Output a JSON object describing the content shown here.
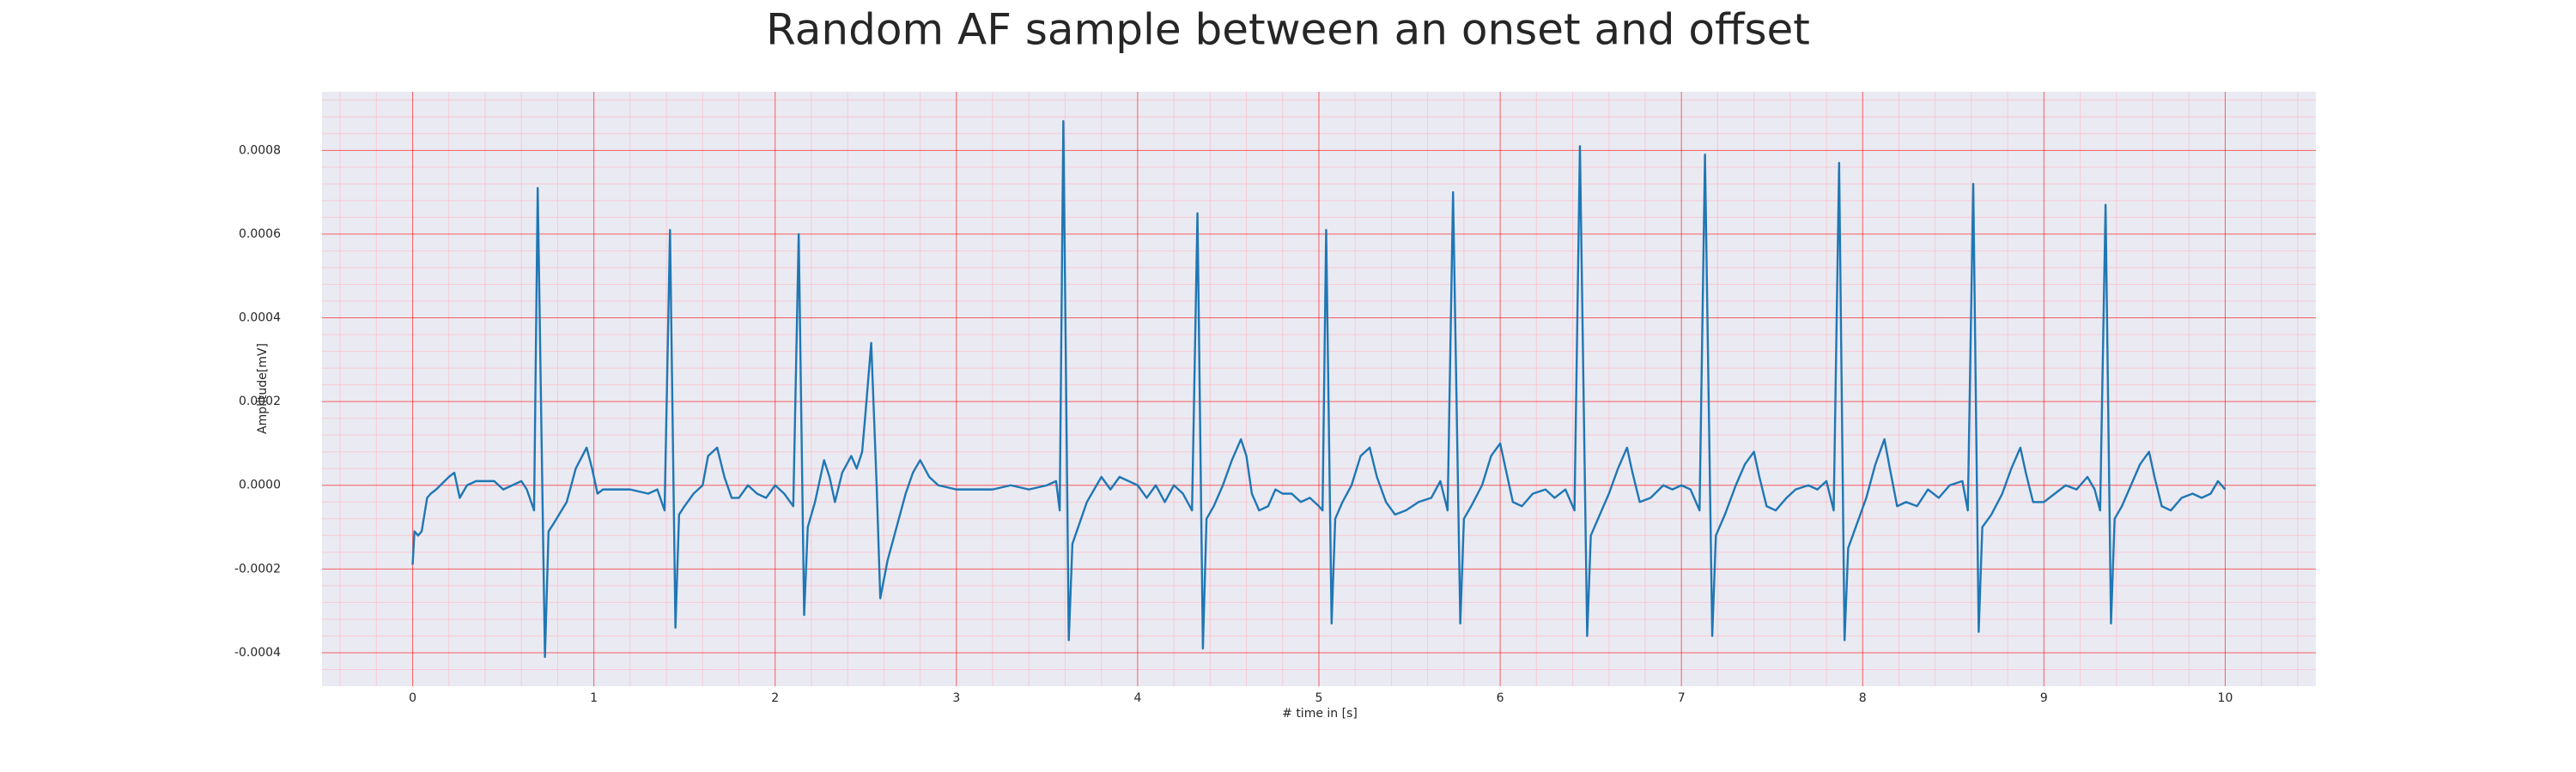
{
  "chart_data": {
    "type": "line",
    "title": "Random AF sample between an onset and offset",
    "x_label": "# time in [s]",
    "y_label": "Amplitude[mV]",
    "xlim": [
      -0.5,
      10.5
    ],
    "ylim": [
      -0.00048,
      0.00094
    ],
    "xticks": [
      0,
      1,
      2,
      3,
      4,
      5,
      6,
      7,
      8,
      9,
      10
    ],
    "yticks": [
      {
        "value": -0.0004,
        "label": "-0.0004"
      },
      {
        "value": -0.0002,
        "label": "-0.0002"
      },
      {
        "value": 0,
        "label": "0.0000"
      },
      {
        "value": 0.0002,
        "label": "0.0002"
      },
      {
        "value": 0.0004,
        "label": "0.0004"
      },
      {
        "value": 0.0006,
        "label": "0.0006"
      },
      {
        "value": 0.0008,
        "label": "0.0008"
      }
    ],
    "grid": true,
    "minor_grid": true,
    "grid_color": "#ff0000",
    "minor_grid_color": "#ffb6c1",
    "background": "#eaeaf2",
    "x": [
      0.0,
      0.01,
      0.03,
      0.05,
      0.08,
      0.1,
      0.13,
      0.2,
      0.23,
      0.26,
      0.3,
      0.35,
      0.45,
      0.5,
      0.55,
      0.6,
      0.63,
      0.67,
      0.69,
      0.73,
      0.75,
      0.78,
      0.85,
      0.9,
      0.96,
      0.99,
      1.02,
      1.05,
      1.1,
      1.2,
      1.3,
      1.35,
      1.39,
      1.42,
      1.45,
      1.47,
      1.5,
      1.55,
      1.6,
      1.63,
      1.68,
      1.72,
      1.76,
      1.8,
      1.85,
      1.9,
      1.95,
      2.0,
      2.05,
      2.1,
      2.13,
      2.16,
      2.18,
      2.22,
      2.27,
      2.3,
      2.33,
      2.37,
      2.42,
      2.45,
      2.48,
      2.5,
      2.53,
      2.56,
      2.58,
      2.62,
      2.67,
      2.72,
      2.76,
      2.8,
      2.85,
      2.9,
      3.0,
      3.1,
      3.2,
      3.3,
      3.4,
      3.5,
      3.55,
      3.57,
      3.59,
      3.62,
      3.64,
      3.68,
      3.72,
      3.76,
      3.8,
      3.85,
      3.9,
      3.95,
      4.0,
      4.05,
      4.1,
      4.15,
      4.2,
      4.25,
      4.3,
      4.33,
      4.36,
      4.38,
      4.42,
      4.47,
      4.52,
      4.57,
      4.6,
      4.63,
      4.67,
      4.72,
      4.76,
      4.8,
      4.85,
      4.9,
      4.95,
      5.0,
      5.02,
      5.04,
      5.07,
      5.09,
      5.13,
      5.18,
      5.23,
      5.28,
      5.32,
      5.37,
      5.42,
      5.48,
      5.55,
      5.62,
      5.67,
      5.71,
      5.74,
      5.78,
      5.8,
      5.84,
      5.9,
      5.95,
      6.0,
      6.03,
      6.07,
      6.12,
      6.18,
      6.25,
      6.3,
      6.36,
      6.41,
      6.44,
      6.48,
      6.5,
      6.55,
      6.6,
      6.65,
      6.7,
      6.73,
      6.77,
      6.83,
      6.9,
      6.95,
      7.0,
      7.05,
      7.1,
      7.13,
      7.17,
      7.19,
      7.24,
      7.3,
      7.35,
      7.4,
      7.43,
      7.47,
      7.52,
      7.58,
      7.63,
      7.7,
      7.75,
      7.8,
      7.84,
      7.87,
      7.9,
      7.92,
      7.97,
      8.02,
      8.07,
      8.12,
      8.15,
      8.19,
      8.24,
      8.3,
      8.36,
      8.42,
      8.48,
      8.55,
      8.58,
      8.61,
      8.64,
      8.66,
      8.71,
      8.77,
      8.82,
      8.87,
      8.9,
      8.94,
      9.0,
      9.06,
      9.12,
      9.18,
      9.24,
      9.28,
      9.31,
      9.34,
      9.37,
      9.39,
      9.43,
      9.48,
      9.53,
      9.58,
      9.61,
      9.65,
      9.7,
      9.76,
      9.82,
      9.87,
      9.92,
      9.96,
      9.98,
      10.0
    ],
    "series": [
      {
        "color": "#1f77b4",
        "values": [
          -0.00019,
          -0.00011,
          -0.00012,
          -0.00011,
          -3e-05,
          -2e-05,
          -1e-05,
          2e-05,
          3e-05,
          -3e-05,
          0.0,
          1e-05,
          1e-05,
          -1e-05,
          0.0,
          1e-05,
          -1e-05,
          -6e-05,
          0.00071,
          -0.00041,
          -0.00011,
          -9e-05,
          -4e-05,
          4e-05,
          9e-05,
          4e-05,
          -2e-05,
          -1e-05,
          -1e-05,
          -1e-05,
          -2e-05,
          -1e-05,
          -6e-05,
          0.00061,
          -0.00034,
          -7e-05,
          -5e-05,
          -2e-05,
          0.0,
          7e-05,
          9e-05,
          2e-05,
          -3e-05,
          -3e-05,
          0.0,
          -2e-05,
          -3e-05,
          0.0,
          -2e-05,
          -5e-05,
          0.0006,
          -0.00031,
          -0.0001,
          -4e-05,
          6e-05,
          2e-05,
          -4e-05,
          3e-05,
          7e-05,
          4e-05,
          8e-05,
          0.00018,
          0.00034,
          0.0,
          -0.00027,
          -0.00018,
          -0.0001,
          -2e-05,
          3e-05,
          6e-05,
          2e-05,
          0.0,
          -1e-05,
          -1e-05,
          -1e-05,
          0.0,
          -1e-05,
          0.0,
          1e-05,
          -6e-05,
          0.00087,
          -0.00037,
          -0.00014,
          -9e-05,
          -4e-05,
          -1e-05,
          2e-05,
          -1e-05,
          2e-05,
          1e-05,
          0.0,
          -3e-05,
          0.0,
          -4e-05,
          0.0,
          -2e-05,
          -6e-05,
          0.00065,
          -0.00039,
          -8e-05,
          -5e-05,
          0.0,
          6e-05,
          0.00011,
          7e-05,
          -2e-05,
          -6e-05,
          -5e-05,
          -1e-05,
          -2e-05,
          -2e-05,
          -4e-05,
          -3e-05,
          -5e-05,
          -6e-05,
          0.00061,
          -0.00033,
          -8e-05,
          -4e-05,
          0.0,
          7e-05,
          9e-05,
          2e-05,
          -4e-05,
          -7e-05,
          -6e-05,
          -4e-05,
          -3e-05,
          1e-05,
          -6e-05,
          0.0007,
          -0.00033,
          -8e-05,
          -5e-05,
          0.0,
          7e-05,
          0.0001,
          4e-05,
          -4e-05,
          -5e-05,
          -2e-05,
          -1e-05,
          -3e-05,
          -1e-05,
          -6e-05,
          0.00081,
          -0.00036,
          -0.00012,
          -7e-05,
          -2e-05,
          4e-05,
          9e-05,
          3e-05,
          -4e-05,
          -3e-05,
          0.0,
          -1e-05,
          0.0,
          -1e-05,
          -6e-05,
          0.00079,
          -0.00036,
          -0.00012,
          -7e-05,
          0.0,
          5e-05,
          8e-05,
          2e-05,
          -5e-05,
          -6e-05,
          -3e-05,
          -1e-05,
          0.0,
          -1e-05,
          1e-05,
          -6e-05,
          0.00077,
          -0.00037,
          -0.00015,
          -9e-05,
          -3e-05,
          5e-05,
          0.00011,
          4e-05,
          -5e-05,
          -4e-05,
          -5e-05,
          -1e-05,
          -3e-05,
          0.0,
          1e-05,
          -6e-05,
          0.00072,
          -0.00035,
          -0.0001,
          -7e-05,
          -2e-05,
          4e-05,
          9e-05,
          3e-05,
          -4e-05,
          -4e-05,
          -2e-05,
          0.0,
          -1e-05,
          2e-05,
          -1e-05,
          -6e-05,
          0.00067,
          -0.00033,
          -8e-05,
          -5e-05,
          0.0,
          5e-05,
          8e-05,
          2e-05,
          -5e-05,
          -6e-05,
          -3e-05,
          -2e-05,
          -3e-05,
          -2e-05,
          1e-05,
          0.0,
          -1e-05
        ]
      }
    ]
  }
}
